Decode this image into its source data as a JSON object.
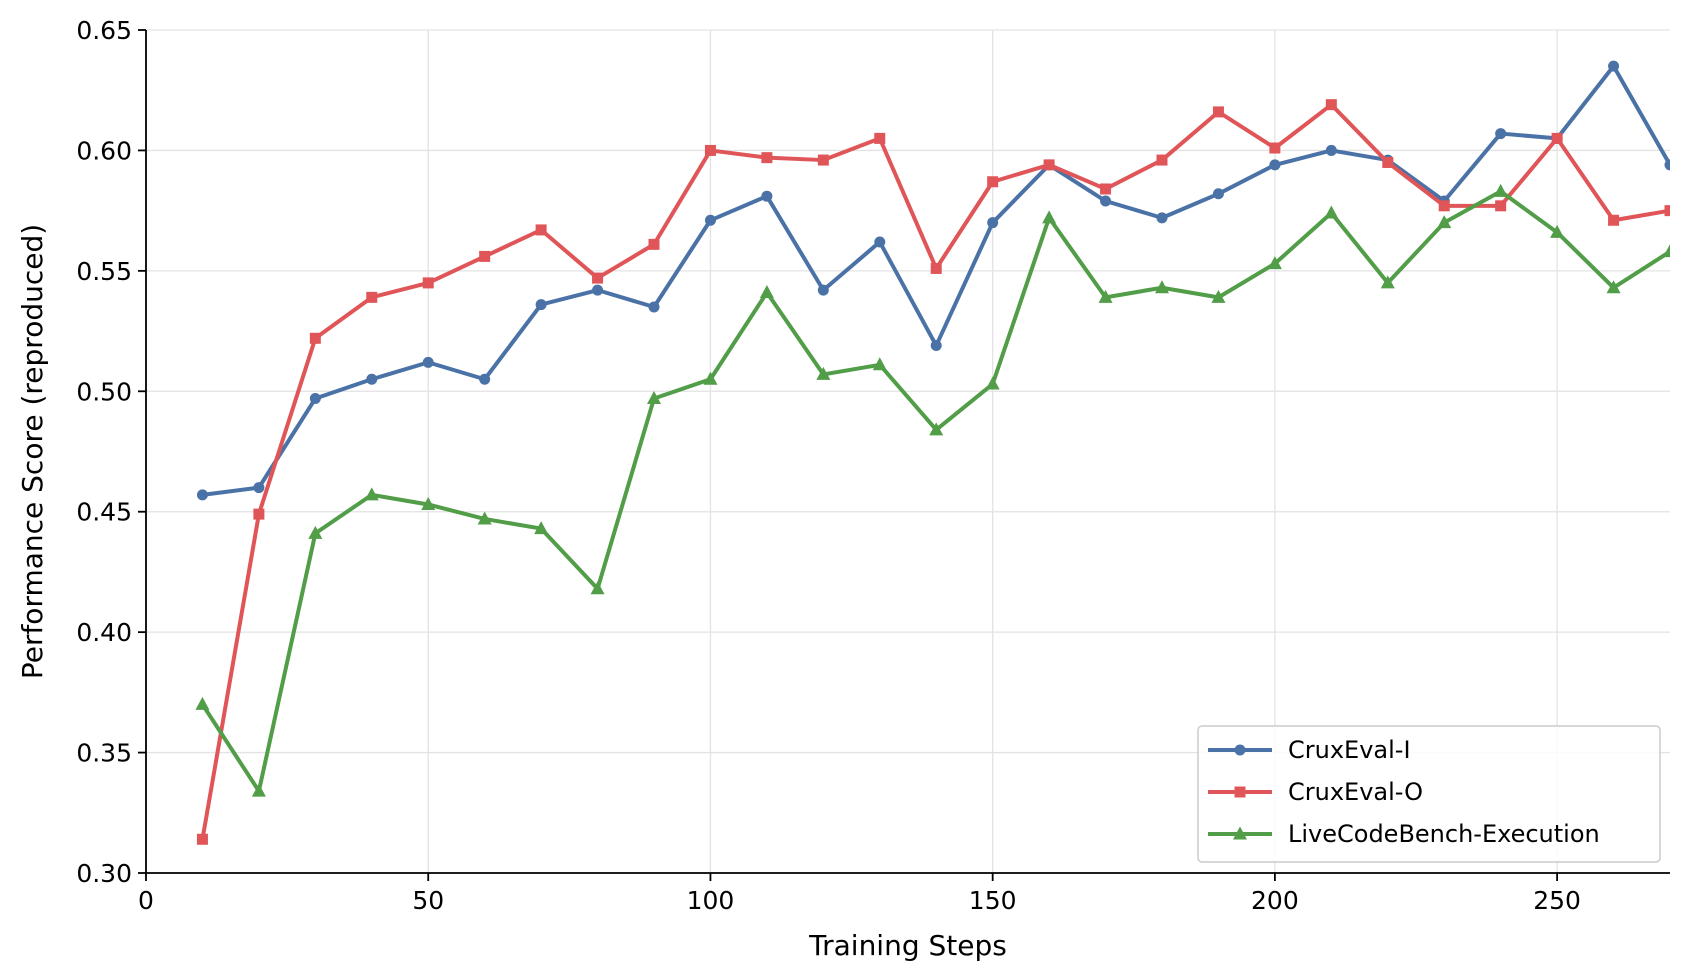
{
  "chart_data": {
    "type": "line",
    "xlabel": "Training Steps",
    "ylabel": "Performance Score (reproduced)",
    "xlim": [
      0,
      270
    ],
    "ylim": [
      0.3,
      0.65
    ],
    "xticks": [
      "0",
      "50",
      "100",
      "150",
      "200",
      "250"
    ],
    "yticks": [
      "0.30",
      "0.35",
      "0.40",
      "0.45",
      "0.50",
      "0.55",
      "0.60",
      "0.65"
    ],
    "grid": true,
    "legend_position": "lower-right",
    "x": [
      10,
      20,
      30,
      40,
      50,
      60,
      70,
      80,
      90,
      100,
      110,
      120,
      130,
      140,
      150,
      160,
      170,
      180,
      190,
      200,
      210,
      220,
      230,
      240,
      250,
      260,
      270
    ],
    "series": [
      {
        "name": "CruxEval-I",
        "color": "#4a72a6",
        "marker": "circle",
        "values": [
          0.457,
          0.46,
          0.497,
          0.505,
          0.512,
          0.505,
          0.536,
          0.542,
          0.535,
          0.571,
          0.581,
          0.542,
          0.562,
          0.519,
          0.57,
          0.594,
          0.579,
          0.572,
          0.582,
          0.594,
          0.6,
          0.596,
          0.579,
          0.607,
          0.605,
          0.635,
          0.594
        ]
      },
      {
        "name": "CruxEval-O",
        "color": "#e05557",
        "marker": "square",
        "values": [
          0.314,
          0.449,
          0.522,
          0.539,
          0.545,
          0.556,
          0.567,
          0.547,
          0.561,
          0.6,
          0.597,
          0.596,
          0.605,
          0.551,
          0.587,
          0.594,
          0.584,
          0.596,
          0.616,
          0.601,
          0.619,
          0.595,
          0.577,
          0.577,
          0.605,
          0.571,
          0.575
        ]
      },
      {
        "name": "LiveCodeBench-Execution",
        "color": "#519d48",
        "marker": "triangle",
        "values": [
          0.37,
          0.334,
          0.441,
          0.457,
          0.453,
          0.447,
          0.443,
          0.418,
          0.497,
          0.505,
          0.541,
          0.507,
          0.511,
          0.484,
          0.503,
          0.572,
          0.539,
          0.543,
          0.539,
          0.553,
          0.574,
          0.545,
          0.57,
          0.583,
          0.566,
          0.543,
          0.558
        ]
      }
    ]
  }
}
